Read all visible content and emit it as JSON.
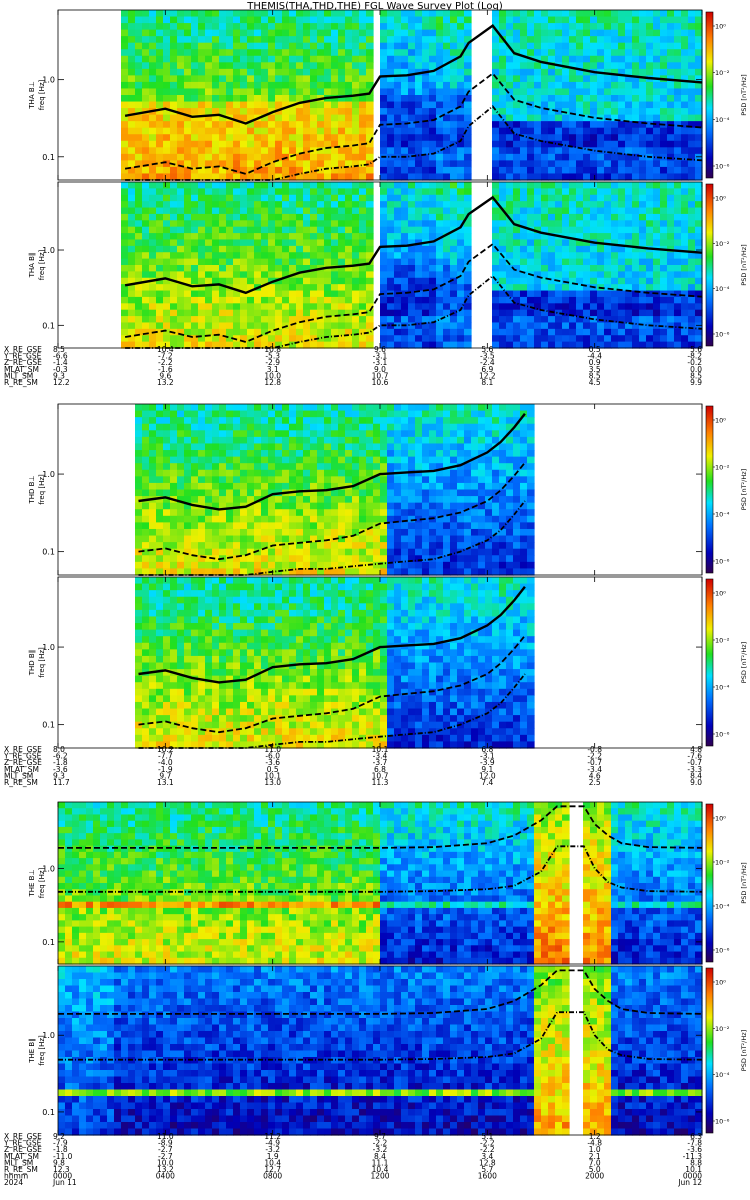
{
  "title": "THEMIS(THA,THD,THE) FGL Wave Survey Plot (Log)",
  "colorbar": {
    "label": "PSD [nT²/Hz]",
    "ticks": [
      "10⁰",
      "10⁻²",
      "10⁻⁴",
      "10⁻⁶"
    ]
  },
  "freq_ticks": [
    "1.0",
    "0.1"
  ],
  "panels": [
    {
      "probe": "THA",
      "comp": "B⊥",
      "ylabel": "freq [Hz]"
    },
    {
      "probe": "THA",
      "comp": "B∥",
      "ylabel": "freq [Hz]"
    },
    {
      "probe": "THD",
      "comp": "B⊥",
      "ylabel": "freq [Hz]"
    },
    {
      "probe": "THD",
      "comp": "B∥",
      "ylabel": "freq [Hz]"
    },
    {
      "probe": "THE",
      "comp": "B⊥",
      "ylabel": "freq [Hz]"
    },
    {
      "probe": "THE",
      "comp": "B∥",
      "ylabel": "freq [Hz]"
    }
  ],
  "ephemeris_blocks": [
    {
      "rows": [
        {
          "label": "X_RE_GSE",
          "values": [
            "8.5",
            "10.4",
            "10.8",
            "9.6",
            "5.6",
            "0.5",
            "5.6"
          ]
        },
        {
          "label": "Y_RE_GSE",
          "values": [
            "-6.6",
            "-7.2",
            "-5.3",
            "-3.1",
            "-3.5",
            "-4.4",
            "-8.2"
          ]
        },
        {
          "label": "Z_RE_GSE",
          "values": [
            "-1.4",
            "-2.2",
            "-2.9",
            "-3.1",
            "-2.4",
            "0.9",
            "-0.2"
          ]
        },
        {
          "label": "MLAT_SM",
          "values": [
            "-0.3",
            "-1.6",
            "3.1",
            "9.0",
            "6.9",
            "3.5",
            "0.0"
          ]
        },
        {
          "label": "MLT_SM",
          "values": [
            "9.3",
            "9.6",
            "10.0",
            "10.7",
            "12.2",
            "8.5",
            "8.5"
          ]
        },
        {
          "label": "R_RE_SM",
          "values": [
            "12.2",
            "13.2",
            "12.8",
            "10.6",
            "8.1",
            "4.5",
            "9.9"
          ]
        }
      ]
    },
    {
      "rows": [
        {
          "label": "X_RE_GSE",
          "values": [
            "8.0",
            "10.2",
            "11.0",
            "10.1",
            "6.8",
            "-0.8",
            "4.8"
          ]
        },
        {
          "label": "Y_RE_GSE",
          "values": [
            "-6.2",
            "-7.7",
            "-6.0",
            "-3.4",
            "-3.1",
            "-2.2",
            "-7.6"
          ]
        },
        {
          "label": "Z_RE_GSE",
          "values": [
            "-1.8",
            "-4.0",
            "-3.6",
            "-3.7",
            "-3.9",
            "-0.7",
            "-0.7"
          ]
        },
        {
          "label": "MLAT_SM",
          "values": [
            "-3.6",
            "-1.9",
            "0.5",
            "6.8",
            "9.1",
            "-3.4",
            "-3.3"
          ]
        },
        {
          "label": "MLT_SM",
          "values": [
            "9.3",
            "9.7",
            "10.1",
            "10.7",
            "12.0",
            "4.6",
            "8.4"
          ]
        },
        {
          "label": "R_RE_SM",
          "values": [
            "11.7",
            "13.1",
            "13.0",
            "11.3",
            "7.4",
            "2.5",
            "9.0"
          ]
        }
      ]
    },
    {
      "rows": [
        {
          "label": "X_RE_GSE",
          "values": [
            "9.2",
            "11.0",
            "11.2",
            "9.7",
            "5.1",
            "1.2",
            "6.3"
          ]
        },
        {
          "label": "Y_RE_GSE",
          "values": [
            "-7.9",
            "-8.9",
            "-4.9",
            "-2.2",
            "-2.2",
            "-4.8",
            "-7.8"
          ]
        },
        {
          "label": "Z_RE_GSE",
          "values": [
            "-1.8",
            "-2.7",
            "-3.2",
            "-3.2",
            "-2.2",
            "1.0",
            "-3.6"
          ]
        },
        {
          "label": "MLAT_SM",
          "values": [
            "-11.0",
            "-2.7",
            "1.9",
            "8.4",
            "3.4",
            "2.1",
            "-11.3"
          ]
        },
        {
          "label": "MLT_SM",
          "values": [
            "9.8",
            "10.0",
            "10.4",
            "11.1",
            "12.8",
            "7.0",
            "8.8"
          ]
        },
        {
          "label": "R_RE_SM",
          "values": [
            "12.3",
            "13.2",
            "12.7",
            "10.4",
            "5.7",
            "5.0",
            "10.1"
          ]
        },
        {
          "label": "hhmm",
          "values": [
            "0000",
            "0400",
            "0800",
            "1200",
            "1600",
            "2000",
            "0000"
          ]
        }
      ],
      "date_row": {
        "label": "2024",
        "left": "Jun 11",
        "right": "Jun 12"
      }
    }
  ],
  "chart_data": {
    "type": "heatmap",
    "title": "THEMIS(THA,THD,THE) FGL Wave Survey Plot (Log)",
    "x_unit": "UT hhmm",
    "x_range": [
      "2024 Jun 11 0000",
      "2024 Jun 12 0000"
    ],
    "y_scale": "log",
    "ylabel": "freq [Hz]",
    "y_range": [
      0.05,
      8.0
    ],
    "z_scale": "log",
    "z_label": "PSD [nT²/Hz]",
    "z_range": [
      1e-07,
      10
    ],
    "data_gaps_hours": {
      "THA": [
        [
          0.0,
          2.25
        ],
        [
          11.85,
          12.0
        ],
        [
          15.45,
          16.05
        ]
      ],
      "THD": [
        [
          0.0,
          2.9
        ],
        [
          17.65,
          24.0
        ]
      ],
      "THE": [
        [
          19.0,
          19.5
        ]
      ]
    },
    "gyro_lines": {
      "THA": {
        "hours": [
          2.5,
          4,
          5,
          6,
          7,
          8,
          9,
          10,
          11,
          11.6,
          12,
          13,
          14,
          15,
          15.3,
          16.2,
          17,
          18,
          20,
          22,
          24
        ],
        "f_solid": [
          0.34,
          0.42,
          0.33,
          0.35,
          0.27,
          0.38,
          0.5,
          0.58,
          0.62,
          0.66,
          1.1,
          1.14,
          1.3,
          2.0,
          3.0,
          5.0,
          2.2,
          1.7,
          1.25,
          1.05,
          0.92
        ],
        "f_dashed": [
          0.07,
          0.085,
          0.07,
          0.075,
          0.06,
          0.085,
          0.11,
          0.13,
          0.14,
          0.15,
          0.26,
          0.27,
          0.3,
          0.45,
          0.7,
          1.2,
          0.55,
          0.43,
          0.32,
          0.27,
          0.24
        ],
        "f_dotdash": [
          0.045,
          0.05,
          0.045,
          0.045,
          0.04,
          0.05,
          0.06,
          0.07,
          0.075,
          0.08,
          0.1,
          0.1,
          0.11,
          0.16,
          0.25,
          0.45,
          0.2,
          0.16,
          0.12,
          0.1,
          0.09
        ]
      },
      "THD": {
        "hours": [
          3,
          4,
          5,
          6,
          7,
          8,
          9,
          10,
          11,
          12,
          13,
          14,
          15,
          16,
          16.5,
          17,
          17.4
        ],
        "f_solid": [
          0.45,
          0.5,
          0.4,
          0.35,
          0.38,
          0.55,
          0.6,
          0.62,
          0.7,
          1.0,
          1.05,
          1.1,
          1.3,
          1.9,
          2.6,
          4.0,
          6.0
        ],
        "f_dashed": [
          0.1,
          0.11,
          0.09,
          0.08,
          0.09,
          0.12,
          0.13,
          0.14,
          0.16,
          0.23,
          0.25,
          0.27,
          0.32,
          0.45,
          0.62,
          0.95,
          1.4
        ],
        "f_dotdash": [
          0.05,
          0.05,
          0.05,
          0.05,
          0.05,
          0.055,
          0.06,
          0.06,
          0.065,
          0.07,
          0.075,
          0.08,
          0.1,
          0.14,
          0.19,
          0.3,
          0.45
        ]
      },
      "THE": {
        "hours": [
          0,
          4,
          8,
          12,
          14,
          16,
          17,
          18,
          18.6,
          19.6,
          20,
          20.5,
          21,
          22,
          24
        ],
        "f_dashed": [
          1.9,
          1.9,
          1.9,
          1.9,
          1.95,
          2.2,
          2.8,
          4.5,
          7.0,
          7.0,
          4.0,
          2.8,
          2.2,
          1.95,
          1.9
        ],
        "f_dotdash": [
          0.48,
          0.48,
          0.48,
          0.48,
          0.49,
          0.52,
          0.58,
          0.9,
          2.0,
          2.0,
          1.0,
          0.65,
          0.55,
          0.49,
          0.48
        ]
      }
    },
    "spectral_features": {
      "THA_Bperp": {
        "high_power_until_hours": 11.8,
        "low_power_band_hz": [
          0.1,
          0.4
        ]
      },
      "THD_Bperp": {
        "high_power_until_hours": 12.3
      },
      "THE_Bperp": {
        "narrowband_hz": 0.25,
        "narrowband_until_hours": 12.0,
        "low_power_after_hours": 12.0
      },
      "THE_Bpar": {
        "narrowband_hz": 0.25,
        "background": "low"
      }
    },
    "legend": "none",
    "grid": false
  }
}
